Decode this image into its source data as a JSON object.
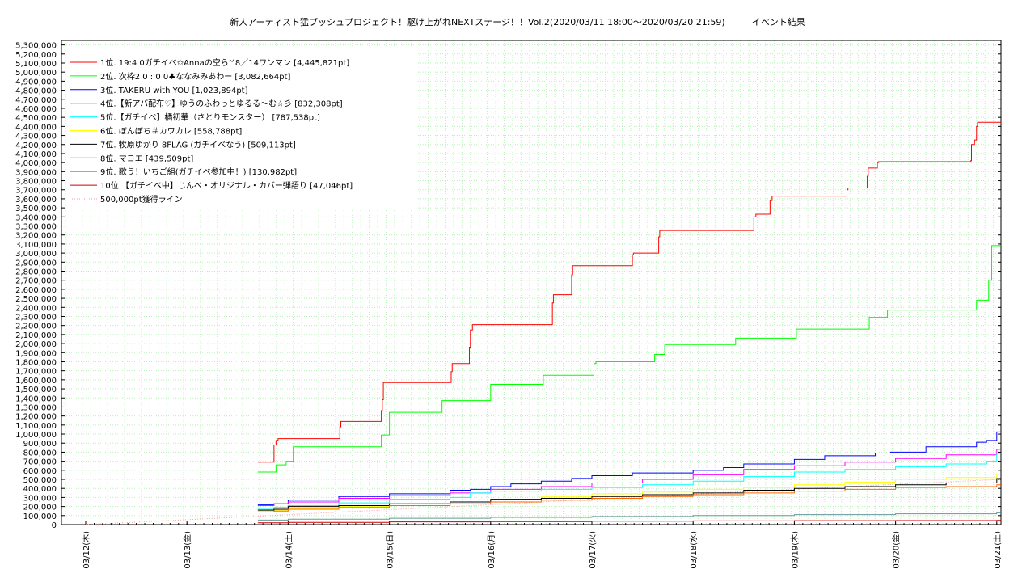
{
  "chart_data": {
    "type": "line",
    "title": "新人アーティスト猛プッシュプロジェクト！駆け上がれNEXTステージ！！Vol.2(2020/03/11 18:00〜2020/03/20 21:59)　　　イベント結果",
    "xlabel": "",
    "ylabel": "",
    "grid": true,
    "legend_position": "top-left",
    "ylim": [
      0,
      5350000
    ],
    "xlim": [
      0,
      9.05
    ],
    "x_tick_labels": [
      "03/12(木)",
      "03/13(金)",
      "03/14(土)",
      "03/15(日)",
      "03/16(月)",
      "03/17(火)",
      "03/18(水)",
      "03/19(木)",
      "03/20(金)",
      "03/21(土)"
    ],
    "x_tick_positions": [
      0,
      1,
      2,
      3,
      4,
      5,
      6,
      7,
      8,
      9
    ],
    "y_tick_values": [
      0,
      100000,
      200000,
      300000,
      400000,
      500000,
      600000,
      700000,
      800000,
      900000,
      1000000,
      1100000,
      1200000,
      1300000,
      1400000,
      1500000,
      1600000,
      1700000,
      1800000,
      1900000,
      2000000,
      2100000,
      2200000,
      2300000,
      2400000,
      2500000,
      2600000,
      2700000,
      2800000,
      2900000,
      3000000,
      3100000,
      3200000,
      3300000,
      3400000,
      3500000,
      3600000,
      3700000,
      3800000,
      3900000,
      4000000,
      4100000,
      4200000,
      4300000,
      4400000,
      4500000,
      4600000,
      4700000,
      4800000,
      4900000,
      5000000,
      5100000,
      5200000,
      5300000
    ],
    "y_tick_labels": [
      "0",
      "100,000",
      "200,000",
      "300,000",
      "400,000",
      "500,000",
      "600,000",
      "700,000",
      "800,000",
      "900,000",
      "1,000,000",
      "1,100,000",
      "1,200,000",
      "1,300,000",
      "1,400,000",
      "1,500,000",
      "1,600,000",
      "1,700,000",
      "1,800,000",
      "1,900,000",
      "2,000,000",
      "2,100,000",
      "2,200,000",
      "2,300,000",
      "2,400,000",
      "2,500,000",
      "2,600,000",
      "2,700,000",
      "2,800,000",
      "2,900,000",
      "3,000,000",
      "3,100,000",
      "3,200,000",
      "3,300,000",
      "3,400,000",
      "3,500,000",
      "3,600,000",
      "3,700,000",
      "3,800,000",
      "3,900,000",
      "4,000,000",
      "4,100,000",
      "4,200,000",
      "4,300,000",
      "4,400,000",
      "4,500,000",
      "4,600,000",
      "4,700,000",
      "4,800,000",
      "4,900,000",
      "5,000,000",
      "5,100,000",
      "5,200,000",
      "5,300,000"
    ],
    "series": [
      {
        "name": "1位. 19:4 0ガチイベ✩Annaの空ら̀’´8／14ワンマン [4,445,821pt]",
        "color": "#ff0000",
        "x": [
          1.7,
          1.84,
          1.86,
          1.88,
          1.9,
          2.5,
          2.51,
          2.52,
          2.9,
          2.92,
          2.93,
          2.94,
          3.6,
          3.61,
          3.62,
          3.64,
          3.78,
          3.79,
          3.8,
          3.82,
          4.6,
          4.61,
          4.62,
          4.78,
          4.8,
          4.81,
          5.0,
          5.38,
          5.4,
          5.41,
          5.55,
          5.65,
          5.66,
          5.67,
          6.58,
          6.6,
          6.62,
          6.74,
          6.76,
          6.78,
          7.5,
          7.52,
          7.53,
          7.7,
          7.72,
          7.73,
          7.8,
          7.82,
          7.83,
          8.0,
          8.72,
          8.74,
          8.75,
          8.78,
          8.8,
          8.81,
          9.0,
          9.04
        ],
        "y": [
          690000,
          690000,
          880000,
          930000,
          950000,
          950000,
          1080000,
          1140000,
          1140000,
          1260000,
          1380000,
          1570000,
          1570000,
          1690000,
          1780000,
          1780000,
          1780000,
          1960000,
          2150000,
          2210000,
          2210000,
          2450000,
          2540000,
          2540000,
          2760000,
          2860000,
          2860000,
          2860000,
          2980000,
          3000000,
          3000000,
          3000000,
          3180000,
          3250000,
          3250000,
          3400000,
          3430000,
          3430000,
          3580000,
          3630000,
          3630000,
          3700000,
          3720000,
          3720000,
          3850000,
          3940000,
          3940000,
          4000000,
          4010000,
          4010000,
          4010000,
          4020000,
          4200000,
          4250000,
          4400000,
          4445821,
          4445821,
          4445821
        ]
      },
      {
        "name": "2位. 次枠2 0 : 0 0♣ななみみあわー [3,082,664pt]",
        "color": "#00ff00",
        "x": [
          1.7,
          1.86,
          1.88,
          1.98,
          2.0,
          2.05,
          2.9,
          2.92,
          2.98,
          3.0,
          3.5,
          3.52,
          3.6,
          3.98,
          4.0,
          4.02,
          4.5,
          4.52,
          4.6,
          5.0,
          5.02,
          5.04,
          5.6,
          5.62,
          5.7,
          5.72,
          6.3,
          6.4,
          6.42,
          6.5,
          7.0,
          7.02,
          7.72,
          7.74,
          7.78,
          7.9,
          7.92,
          7.96,
          8.0,
          8.78,
          8.8,
          8.9,
          8.92,
          8.95,
          9.0,
          9.04
        ],
        "y": [
          580000,
          580000,
          660000,
          700000,
          700000,
          860000,
          860000,
          990000,
          990000,
          1240000,
          1240000,
          1370000,
          1370000,
          1370000,
          1550000,
          1550000,
          1550000,
          1650000,
          1650000,
          1650000,
          1780000,
          1800000,
          1800000,
          1880000,
          1880000,
          1990000,
          1990000,
          1990000,
          2060000,
          2060000,
          2060000,
          2160000,
          2160000,
          2290000,
          2290000,
          2290000,
          2370000,
          2370000,
          2370000,
          2370000,
          2480000,
          2480000,
          2700000,
          3082664,
          3082664,
          3082664
        ]
      },
      {
        "name": "3位. TAKERU with YOU [1,023,894pt]",
        "color": "#0000ff",
        "x": [
          1.7,
          1.86,
          2.0,
          2.05,
          2.5,
          2.6,
          3.0,
          3.1,
          3.6,
          3.8,
          4.0,
          4.2,
          4.5,
          4.8,
          5.0,
          5.4,
          6.0,
          6.3,
          6.5,
          7.0,
          7.3,
          7.8,
          7.95,
          8.0,
          8.3,
          8.6,
          8.8,
          8.9,
          9.0,
          9.04
        ],
        "y": [
          220000,
          230000,
          270000,
          270000,
          310000,
          310000,
          340000,
          340000,
          380000,
          390000,
          420000,
          450000,
          480000,
          510000,
          540000,
          570000,
          600000,
          630000,
          670000,
          720000,
          760000,
          790000,
          800000,
          800000,
          860000,
          860000,
          910000,
          930000,
          1023894,
          1023894
        ]
      },
      {
        "name": "4位.【新アバ配布♡】ゆうのふわっとゆるる〜む☆彡 [832,308pt]",
        "color": "#ff00ff",
        "x": [
          1.7,
          1.86,
          2.0,
          2.5,
          3.0,
          3.6,
          4.0,
          4.5,
          5.0,
          5.5,
          6.0,
          6.5,
          7.0,
          7.5,
          8.0,
          8.5,
          9.0,
          9.04
        ],
        "y": [
          210000,
          230000,
          250000,
          290000,
          320000,
          350000,
          390000,
          420000,
          460000,
          500000,
          550000,
          610000,
          650000,
          690000,
          730000,
          770000,
          832308,
          832308
        ]
      },
      {
        "name": "5位.【ガチイベ】橘初華（さとりモンスター） [787,538pt]",
        "color": "#00ffff",
        "x": [
          1.7,
          1.86,
          2.0,
          2.5,
          3.0,
          3.6,
          3.8,
          4.0,
          4.5,
          5.0,
          5.5,
          6.0,
          6.5,
          7.0,
          7.5,
          8.0,
          8.5,
          8.9,
          9.0,
          9.04
        ],
        "y": [
          170000,
          190000,
          210000,
          240000,
          280000,
          300000,
          350000,
          370000,
          390000,
          410000,
          440000,
          480000,
          530000,
          580000,
          610000,
          640000,
          670000,
          700000,
          787538,
          787538
        ]
      },
      {
        "name": "6位. ぼんぼち＃カワカレ [558,788pt]",
        "color": "#ffff00",
        "x": [
          1.7,
          1.86,
          2.0,
          2.5,
          3.0,
          3.6,
          4.0,
          4.5,
          5.0,
          5.5,
          6.0,
          6.5,
          7.0,
          7.5,
          8.0,
          8.5,
          9.0,
          9.04
        ],
        "y": [
          150000,
          160000,
          180000,
          200000,
          230000,
          250000,
          280000,
          310000,
          340000,
          360000,
          390000,
          410000,
          440000,
          470000,
          500000,
          520000,
          558788,
          558788
        ]
      },
      {
        "name": "7位. 牧原ゆかり 8FLAG (ガチイベなう) [509,113pt]",
        "color": "#000000",
        "x": [
          1.7,
          1.86,
          2.0,
          2.5,
          3.0,
          3.6,
          4.0,
          4.5,
          5.0,
          5.5,
          6.0,
          6.5,
          7.0,
          7.5,
          8.0,
          8.5,
          9.0,
          9.04
        ],
        "y": [
          160000,
          170000,
          200000,
          210000,
          230000,
          250000,
          280000,
          290000,
          310000,
          330000,
          350000,
          380000,
          400000,
          420000,
          440000,
          460000,
          509113,
          509113
        ]
      },
      {
        "name": "8位. マヨエ [439,509pt]",
        "color": "#ff6600",
        "x": [
          1.7,
          1.86,
          2.0,
          2.5,
          3.0,
          3.6,
          4.0,
          4.5,
          5.0,
          5.5,
          6.0,
          6.5,
          7.0,
          7.5,
          8.0,
          8.5,
          9.0,
          9.04
        ],
        "y": [
          140000,
          150000,
          170000,
          190000,
          210000,
          230000,
          250000,
          270000,
          290000,
          310000,
          330000,
          350000,
          370000,
          390000,
          410000,
          420000,
          439509,
          439509
        ]
      },
      {
        "name": "9位. 歌う！いちご組(ガチイベ参加中！) [130,982pt]",
        "color": "#669999",
        "x": [
          1.7,
          2.0,
          3.0,
          4.0,
          5.0,
          6.0,
          7.0,
          8.0,
          9.0,
          9.04
        ],
        "y": [
          50000,
          60000,
          70000,
          80000,
          90000,
          100000,
          110000,
          120000,
          130982,
          130982
        ]
      },
      {
        "name": "10位.【ガチイベ中】じんべ・オリジナル・カバー弾語り [47,046pt]",
        "color": "#cc0000",
        "x": [
          1.7,
          2.0,
          3.0,
          4.0,
          5.0,
          6.0,
          7.0,
          8.0,
          9.0,
          9.04
        ],
        "y": [
          20000,
          25000,
          30000,
          34000,
          38000,
          41000,
          43000,
          45000,
          47046,
          47046
        ]
      }
    ],
    "reference_line": {
      "name": "500,000pt獲得ライン",
      "color": "#ff9999",
      "x": [
        0,
        1,
        2,
        3,
        4,
        5,
        6,
        7,
        8,
        9.04
      ],
      "y": [
        0,
        55000,
        110000,
        165000,
        220000,
        280000,
        335000,
        390000,
        445000,
        500000
      ]
    }
  }
}
